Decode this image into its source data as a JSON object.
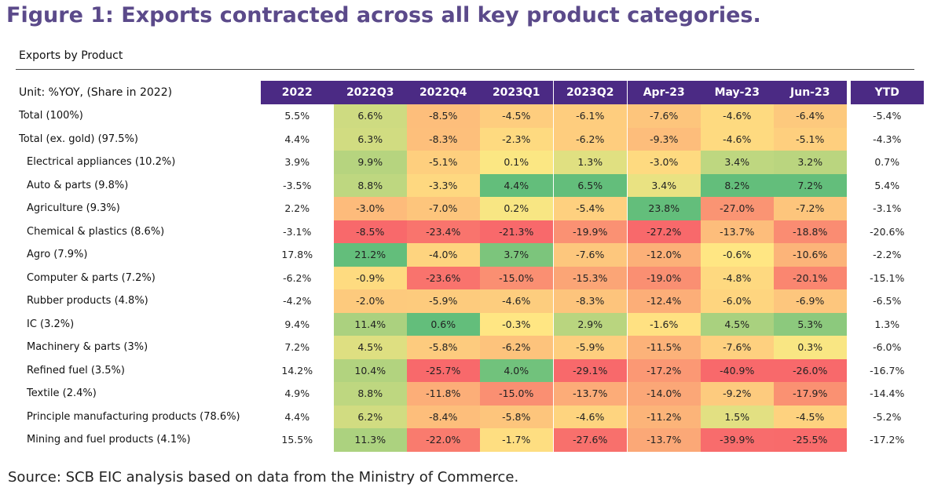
{
  "figure_title": "Figure 1: Exports contracted across all key product categories.",
  "source": "Source: SCB EIC analysis based on data from the Ministry of Commerce.",
  "chart_data": {
    "type": "table",
    "title": "Exports by Product",
    "unit_label": "Unit: %YOY, (Share in 2022)",
    "columns": [
      "2022",
      "2022Q3",
      "2022Q4",
      "2023Q1",
      "2023Q2",
      "Apr-23",
      "May-23",
      "Jun-23",
      "YTD"
    ],
    "heatmap_columns": [
      "2022Q3",
      "2022Q4",
      "2023Q1",
      "2023Q2",
      "Apr-23",
      "May-23",
      "Jun-23"
    ],
    "rows": [
      {
        "label": "Total  (100%)",
        "indent": false,
        "values": [
          "5.5%",
          "6.6%",
          "-8.5%",
          "-4.5%",
          "-6.1%",
          "-7.6%",
          "-4.6%",
          "-6.4%",
          "-5.4%"
        ]
      },
      {
        "label": "Total (ex. gold) (97.5%)",
        "indent": false,
        "values": [
          "4.4%",
          "6.3%",
          "-8.3%",
          "-2.3%",
          "-6.2%",
          "-9.3%",
          "-4.6%",
          "-5.1%",
          "-4.3%"
        ]
      },
      {
        "label": "Electrical appliances  (10.2%)",
        "indent": true,
        "values": [
          "3.9%",
          "9.9%",
          "-5.1%",
          "0.1%",
          "1.3%",
          "-3.0%",
          "3.4%",
          "3.2%",
          "0.7%"
        ]
      },
      {
        "label": "Auto & parts  (9.8%)",
        "indent": true,
        "values": [
          "-3.5%",
          "8.8%",
          "-3.3%",
          "4.4%",
          "6.5%",
          "3.4%",
          "8.2%",
          "7.2%",
          "5.4%"
        ]
      },
      {
        "label": "Agriculture  (9.3%)",
        "indent": true,
        "values": [
          "2.2%",
          "-3.0%",
          "-7.0%",
          "0.2%",
          "-5.4%",
          "23.8%",
          "-27.0%",
          "-7.2%",
          "-3.1%"
        ]
      },
      {
        "label": "Chemical & plastics  (8.6%)",
        "indent": true,
        "values": [
          "-3.1%",
          "-8.5%",
          "-23.4%",
          "-21.3%",
          "-19.9%",
          "-27.2%",
          "-13.7%",
          "-18.8%",
          "-20.6%"
        ]
      },
      {
        "label": "Agro  (7.9%)",
        "indent": true,
        "values": [
          "17.8%",
          "21.2%",
          "-4.0%",
          "3.7%",
          "-7.6%",
          "-12.0%",
          "-0.6%",
          "-10.6%",
          "-2.2%"
        ]
      },
      {
        "label": "Computer & parts  (7.2%)",
        "indent": true,
        "values": [
          "-6.2%",
          "-0.9%",
          "-23.6%",
          "-15.0%",
          "-15.3%",
          "-19.0%",
          "-4.8%",
          "-20.1%",
          "-15.1%"
        ]
      },
      {
        "label": "Rubber products  (4.8%)",
        "indent": true,
        "values": [
          "-4.2%",
          "-2.0%",
          "-5.9%",
          "-4.6%",
          "-8.3%",
          "-12.4%",
          "-6.0%",
          "-6.9%",
          "-6.5%"
        ]
      },
      {
        "label": "IC  (3.2%)",
        "indent": true,
        "values": [
          "9.4%",
          "11.4%",
          "0.6%",
          "-0.3%",
          "2.9%",
          "-1.6%",
          "4.5%",
          "5.3%",
          "1.3%"
        ]
      },
      {
        "label": "Machinery & parts  (3%)",
        "indent": true,
        "values": [
          "7.2%",
          "4.5%",
          "-5.8%",
          "-6.2%",
          "-5.9%",
          "-11.5%",
          "-7.6%",
          "0.3%",
          "-6.0%"
        ]
      },
      {
        "label": "Refined fuel  (3.5%)",
        "indent": true,
        "values": [
          "14.2%",
          "10.4%",
          "-25.7%",
          "4.0%",
          "-29.1%",
          "-17.2%",
          "-40.9%",
          "-26.0%",
          "-16.7%"
        ]
      },
      {
        "label": "Textile  (2.4%)",
        "indent": true,
        "values": [
          "4.9%",
          "8.8%",
          "-11.8%",
          "-15.0%",
          "-13.7%",
          "-14.0%",
          "-9.2%",
          "-17.9%",
          "-14.4%"
        ]
      },
      {
        "label": "Principle manufacturing products (78.6%)",
        "indent": true,
        "values": [
          "4.4%",
          "6.2%",
          "-8.4%",
          "-5.8%",
          "-4.6%",
          "-11.2%",
          "1.5%",
          "-4.5%",
          "-5.2%"
        ]
      },
      {
        "label": "Mining and fuel products  (4.1%)",
        "indent": true,
        "values": [
          "15.5%",
          "11.3%",
          "-22.0%",
          "-1.7%",
          "-27.6%",
          "-13.7%",
          "-39.9%",
          "-25.5%",
          "-17.2%"
        ]
      }
    ],
    "colors": {
      "header_bg": "#4b2a84",
      "header_text": "#ffffff",
      "title": "#5b4a8a",
      "scale_low": "#f8696b",
      "scale_mid": "#ffe883",
      "scale_high": "#63be7b"
    }
  }
}
